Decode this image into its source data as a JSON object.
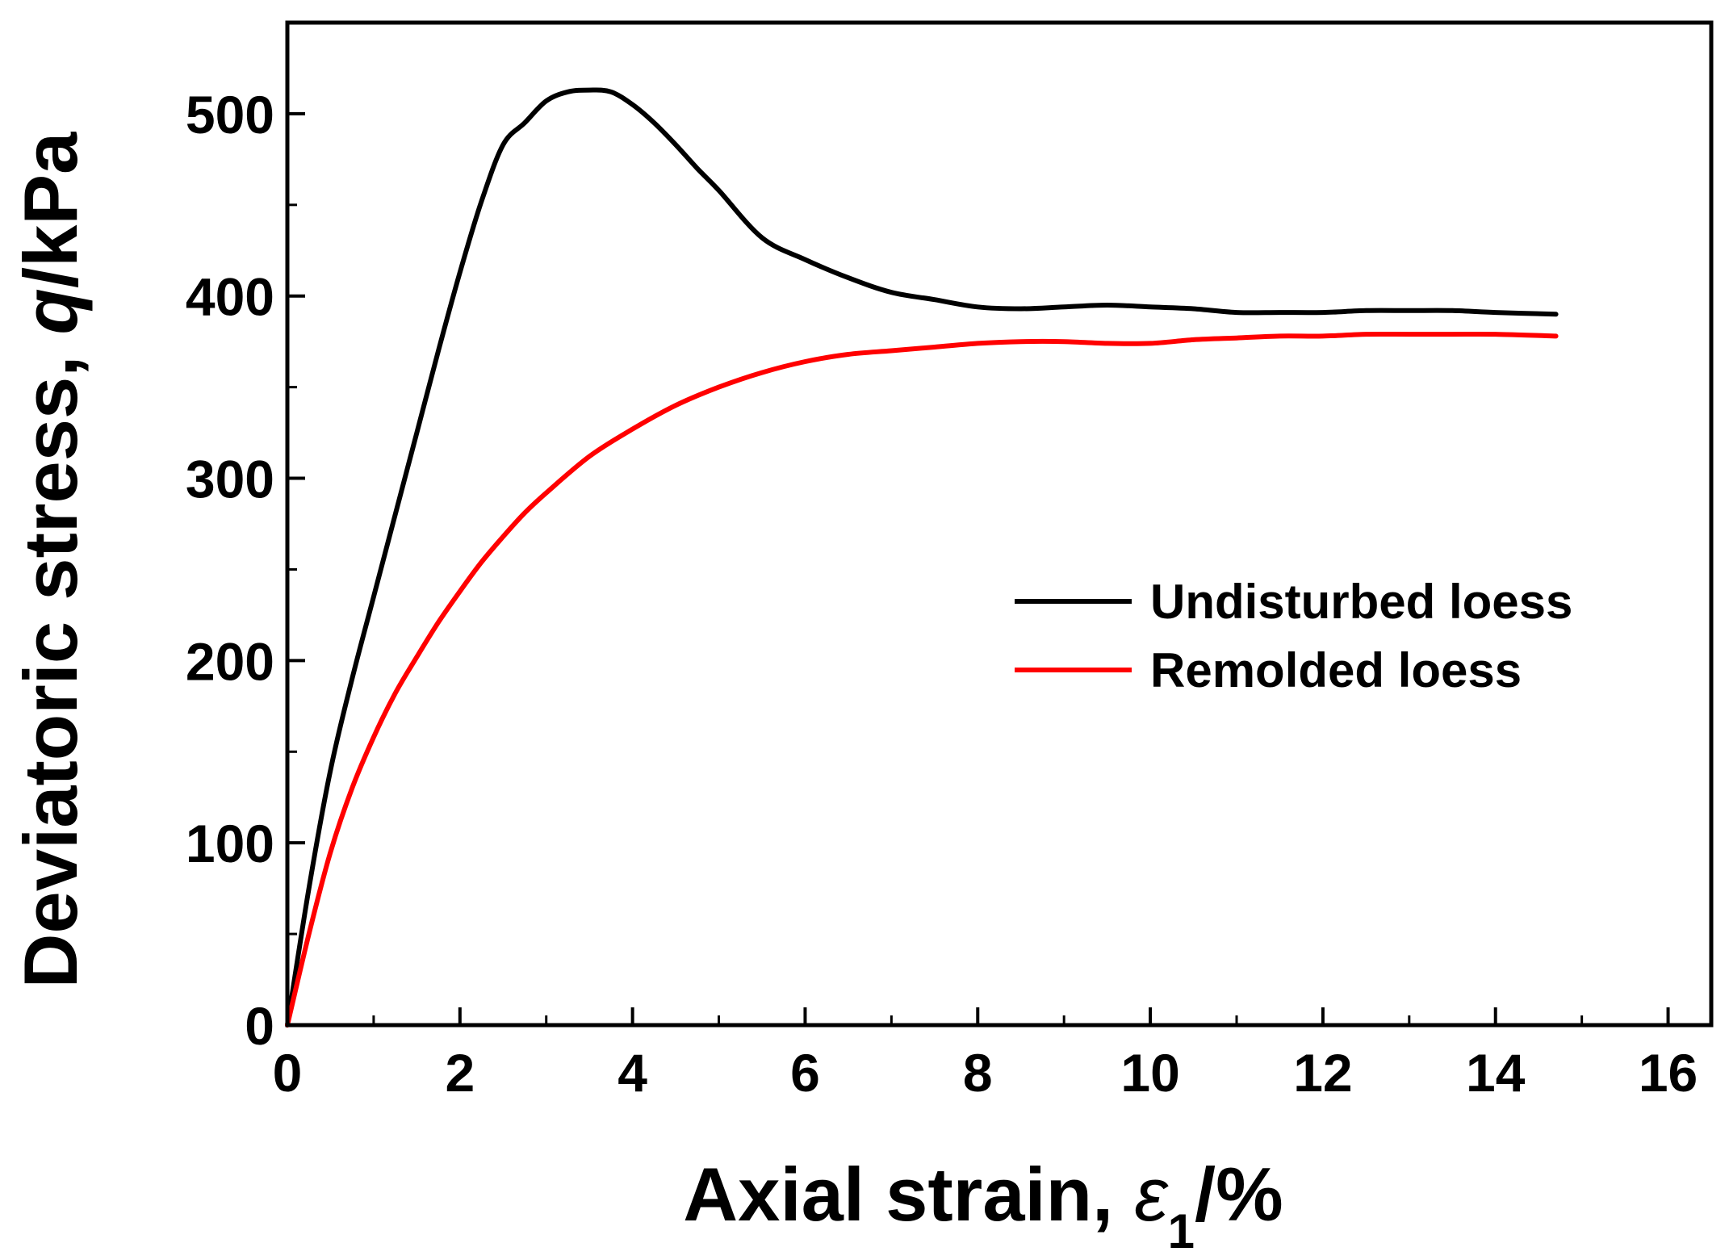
{
  "chart_data": {
    "type": "line",
    "xlabel_main": "Axial strain, ",
    "xlabel_symbol": "ε",
    "xlabel_sub": "1",
    "xlabel_unit": "/%",
    "ylabel_main": "Deviatoric stress, ",
    "ylabel_symbol": "q",
    "ylabel_unit": "/kPa",
    "xlim": [
      0,
      16.5
    ],
    "ylim": [
      0,
      550
    ],
    "x_ticks": [
      "0",
      "2",
      "4",
      "6",
      "8",
      "10",
      "12",
      "14",
      "16"
    ],
    "y_ticks": [
      "0",
      "100",
      "200",
      "300",
      "400",
      "500"
    ],
    "grid": false,
    "legend_position": "center-right",
    "series": [
      {
        "name": "Undisturbed loess",
        "color": "#000000",
        "x": [
          0,
          0.25,
          0.5,
          0.75,
          1.0,
          1.25,
          1.5,
          1.75,
          2.0,
          2.25,
          2.5,
          2.75,
          3.0,
          3.25,
          3.5,
          3.75,
          4.0,
          4.25,
          4.5,
          4.75,
          5.0,
          5.5,
          6.0,
          6.5,
          7.0,
          7.5,
          8.0,
          8.5,
          9.0,
          9.5,
          10.0,
          10.5,
          11.0,
          11.5,
          12.0,
          12.5,
          13.0,
          13.5,
          14.0,
          14.7
        ],
        "y": [
          0,
          75,
          140,
          190,
          235,
          280,
          325,
          370,
          413,
          452,
          483,
          495,
          507,
          512,
          513,
          512,
          505,
          495,
          483,
          470,
          458,
          432,
          420,
          410,
          402,
          398,
          394,
          393,
          394,
          395,
          394,
          393,
          391,
          391,
          391,
          392,
          392,
          392,
          391,
          390
        ]
      },
      {
        "name": "Remolded loess",
        "color": "#ff0000",
        "x": [
          0,
          0.25,
          0.5,
          0.75,
          1.0,
          1.25,
          1.5,
          1.75,
          2.0,
          2.25,
          2.5,
          2.75,
          3.0,
          3.5,
          4.0,
          4.5,
          5.0,
          5.5,
          6.0,
          6.5,
          7.0,
          7.5,
          8.0,
          8.5,
          9.0,
          9.5,
          10.0,
          10.5,
          11.0,
          11.5,
          12.0,
          12.5,
          13.0,
          13.5,
          14.0,
          14.7
        ],
        "y": [
          0,
          50,
          95,
          130,
          158,
          182,
          202,
          221,
          238,
          254,
          268,
          281,
          292,
          312,
          327,
          340,
          350,
          358,
          364,
          368,
          370,
          372,
          374,
          375,
          375,
          374,
          374,
          376,
          377,
          378,
          378,
          379,
          379,
          379,
          379,
          378
        ]
      }
    ]
  }
}
